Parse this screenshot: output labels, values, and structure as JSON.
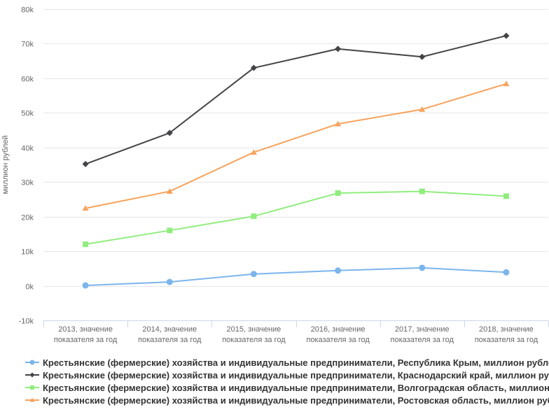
{
  "chart_data": {
    "type": "line",
    "title": "",
    "ylabel": "миллион рублей",
    "xlabel": "",
    "ylim": [
      -10000,
      80000
    ],
    "y_tick_interval": 10000,
    "grid": true,
    "legend_position": "bottom-left",
    "y_ticks": {
      "values": [
        -10000,
        0,
        10000,
        20000,
        30000,
        40000,
        50000,
        60000,
        70000,
        80000
      ],
      "labels": [
        "-10k",
        "0k",
        "10k",
        "20k",
        "30k",
        "40k",
        "50k",
        "60k",
        "70k",
        "80k"
      ]
    },
    "categories": [
      "2013, значение показателя за год",
      "2014, значение показателя за год",
      "2015, значение показателя за год",
      "2016, значение показателя за год",
      "2017, значение показателя за год",
      "2018, значение показателя за год"
    ],
    "x_tick_lines": [
      [
        "2013, значение",
        "показателя за год"
      ],
      [
        "2014, значение",
        "показателя за год"
      ],
      [
        "2015, значение",
        "показателя за год"
      ],
      [
        "2016, значение",
        "показателя за год"
      ],
      [
        "2017, значение",
        "показателя за год"
      ],
      [
        "2018, значение",
        "показателя за год"
      ]
    ],
    "series": [
      {
        "name": "Крестьянские (фермерские) хозяйства и индивидуальные предприниматели, Республика Крым, миллион рублей",
        "color": "#7cb5ec",
        "marker": "circle",
        "values": [
          100,
          1100,
          3400,
          4400,
          5200,
          3900
        ]
      },
      {
        "name": "Крестьянские (фермерские) хозяйства и индивидуальные предприниматели, Краснодарский край, миллион рублей",
        "color": "#434348",
        "marker": "diamond",
        "values": [
          35200,
          44200,
          63000,
          68500,
          66200,
          72300
        ]
      },
      {
        "name": "Крестьянские (фермерские) хозяйства и индивидуальные предприниматели, Волгоградская область, миллион рублей",
        "color": "#90ed7d",
        "marker": "square",
        "values": [
          12000,
          16000,
          20100,
          26800,
          27300,
          25900
        ]
      },
      {
        "name": "Крестьянские (фермерские) хозяйства и индивидуальные предприниматели, Ростовская область, миллион рублей",
        "color": "#f7a35c",
        "marker": "triangle",
        "values": [
          22400,
          27300,
          38600,
          46800,
          51000,
          58400
        ]
      }
    ],
    "style_colors": {
      "grid_line": "#e6e6e6",
      "axis_line": "#ccd6eb",
      "axis_label": "#666666",
      "legend_text": "#333333",
      "background": "#ffffff"
    }
  }
}
